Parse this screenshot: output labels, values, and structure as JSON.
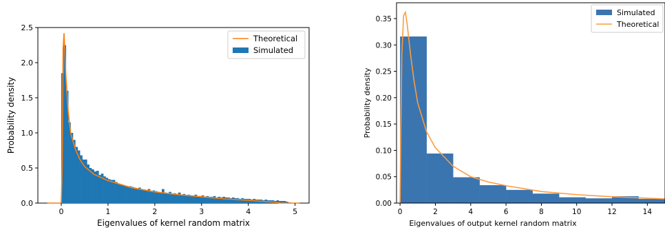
{
  "chart_data": [
    {
      "type": "bar",
      "subtype": "histogram-with-curve",
      "xlabel": "Eigenvalues of kernel random matrix",
      "ylabel": "Probability density",
      "xlim": [
        -0.5,
        5.3
      ],
      "ylim": [
        0,
        2.5
      ],
      "xticks": [
        "0",
        "1",
        "2",
        "3",
        "4",
        "5"
      ],
      "yticks": [
        "0.0",
        "0.5",
        "1.0",
        "1.5",
        "2.0",
        "2.5"
      ],
      "legend": {
        "placement": "top-right",
        "entries": [
          "Theoretical",
          "Simulated"
        ]
      },
      "grid": false,
      "histogram": {
        "name": "Simulated",
        "color": "#1f77b4",
        "bin_start": 0.0,
        "bin_width": 0.05,
        "values": [
          1.85,
          2.25,
          1.6,
          1.15,
          1.0,
          0.9,
          0.8,
          0.75,
          0.68,
          0.62,
          0.62,
          0.55,
          0.5,
          0.48,
          0.45,
          0.46,
          0.4,
          0.42,
          0.38,
          0.36,
          0.34,
          0.33,
          0.33,
          0.3,
          0.28,
          0.27,
          0.26,
          0.25,
          0.24,
          0.24,
          0.23,
          0.22,
          0.21,
          0.22,
          0.2,
          0.19,
          0.18,
          0.2,
          0.17,
          0.18,
          0.17,
          0.16,
          0.15,
          0.2,
          0.15,
          0.14,
          0.16,
          0.13,
          0.14,
          0.13,
          0.15,
          0.12,
          0.13,
          0.11,
          0.12,
          0.11,
          0.1,
          0.12,
          0.1,
          0.1,
          0.11,
          0.09,
          0.1,
          0.09,
          0.09,
          0.1,
          0.08,
          0.09,
          0.08,
          0.09,
          0.08,
          0.08,
          0.07,
          0.08,
          0.07,
          0.07,
          0.06,
          0.07,
          0.06,
          0.06,
          0.06,
          0.05,
          0.06,
          0.05,
          0.05,
          0.05,
          0.04,
          0.05,
          0.04,
          0.04,
          0.04,
          0.03,
          0.04,
          0.03,
          0.03,
          0.03,
          0.02,
          0.01
        ]
      },
      "curve": {
        "name": "Theoretical",
        "color": "#ff7f0e",
        "x": [
          -0.3,
          0.0,
          0.02,
          0.04,
          0.06,
          0.08,
          0.1,
          0.15,
          0.2,
          0.3,
          0.4,
          0.5,
          0.7,
          1.0,
          1.5,
          2.0,
          2.5,
          3.0,
          3.5,
          4.0,
          4.3,
          4.6,
          4.7,
          4.9,
          5.1
        ],
        "y": [
          0.0,
          0.0,
          0.5,
          2.2,
          2.42,
          2.1,
          1.8,
          1.3,
          1.0,
          0.77,
          0.62,
          0.52,
          0.41,
          0.32,
          0.22,
          0.16,
          0.12,
          0.09,
          0.06,
          0.04,
          0.025,
          0.01,
          0.0,
          0.0,
          0.0
        ]
      }
    },
    {
      "type": "bar",
      "subtype": "histogram-with-curve",
      "xlabel": "Eigenvalues of output kernel random matrix",
      "ylabel": "Probability density",
      "xlim": [
        -0.2,
        15
      ],
      "ylim": [
        0,
        0.38
      ],
      "xticks": [
        "0",
        "2",
        "4",
        "6",
        "8",
        "10",
        "12",
        "14"
      ],
      "yticks": [
        "0.00",
        "0.05",
        "0.10",
        "0.15",
        "0.20",
        "0.25",
        "0.30",
        "0.35"
      ],
      "legend": {
        "placement": "top-right",
        "entries": [
          "Simulated",
          "Theoretical"
        ]
      },
      "grid": false,
      "histogram": {
        "name": "Simulated",
        "color": "#3a75b0",
        "bin_start": 0.0,
        "bin_width": 1.5,
        "values": [
          0.316,
          0.094,
          0.049,
          0.034,
          0.025,
          0.018,
          0.011,
          0.009,
          0.013,
          0.008
        ]
      },
      "curve": {
        "name": "Theoretical",
        "color": "#ff9a3c",
        "x": [
          0.0,
          0.05,
          0.1,
          0.2,
          0.3,
          0.4,
          0.6,
          0.8,
          1.0,
          1.5,
          2.0,
          3.0,
          4.0,
          5.0,
          6.0,
          8.0,
          10.0,
          12.0,
          15.0
        ],
        "y": [
          0.0,
          0.15,
          0.28,
          0.355,
          0.362,
          0.34,
          0.28,
          0.23,
          0.19,
          0.135,
          0.105,
          0.07,
          0.05,
          0.04,
          0.033,
          0.022,
          0.016,
          0.012,
          0.008
        ]
      }
    }
  ]
}
